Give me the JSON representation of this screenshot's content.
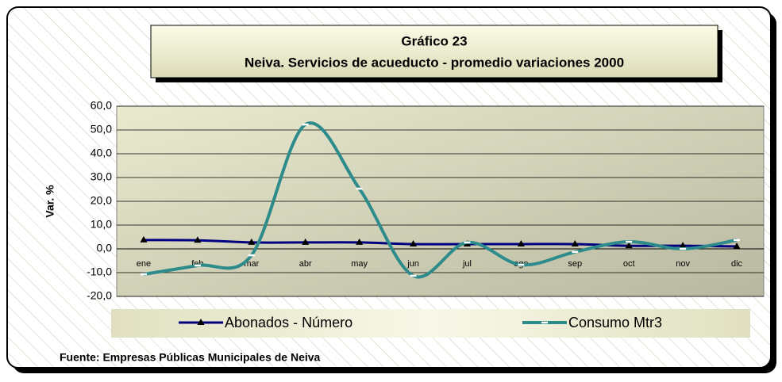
{
  "chart_data": {
    "type": "line",
    "title": "Gráfico 23",
    "subtitle": "Neiva. Servicios de acueducto -  promedio variaciones 2000",
    "ylabel": "Var. %",
    "source": "Fuente: Empresas Públicas Municipales de Neiva",
    "categories": [
      "ene",
      "feb",
      "mar",
      "abr",
      "may",
      "jun",
      "jul",
      "ago",
      "sep",
      "oct",
      "nov",
      "dic"
    ],
    "series": [
      {
        "name": "Abonados - Número",
        "color": "#000080",
        "marker": "triangle",
        "values": [
          3.7,
          3.6,
          2.7,
          2.7,
          2.7,
          2.0,
          2.0,
          2.0,
          2.0,
          1.3,
          1.3,
          1.0
        ]
      },
      {
        "name": "Consumo Mtr3",
        "color": "#2e8b8b",
        "marker": "dash",
        "values": [
          -10.7,
          -7.0,
          -2.7,
          52.3,
          25.3,
          -11.3,
          2.7,
          -6.7,
          -1.3,
          3.0,
          0.0,
          3.7
        ]
      }
    ],
    "ylim": [
      -20,
      60
    ],
    "yticks": [
      {
        "value": -20,
        "label": "-20,0"
      },
      {
        "value": -10,
        "label": "-10,0"
      },
      {
        "value": 0,
        "label": "0,0"
      },
      {
        "value": 10,
        "label": "10,0"
      },
      {
        "value": 20,
        "label": "20,0"
      },
      {
        "value": 30,
        "label": "30,0"
      },
      {
        "value": 40,
        "label": "40,0"
      },
      {
        "value": 50,
        "label": "50,0"
      },
      {
        "value": 60,
        "label": "60,0"
      }
    ],
    "grid": true,
    "smooth": true,
    "legend": "bottom"
  }
}
